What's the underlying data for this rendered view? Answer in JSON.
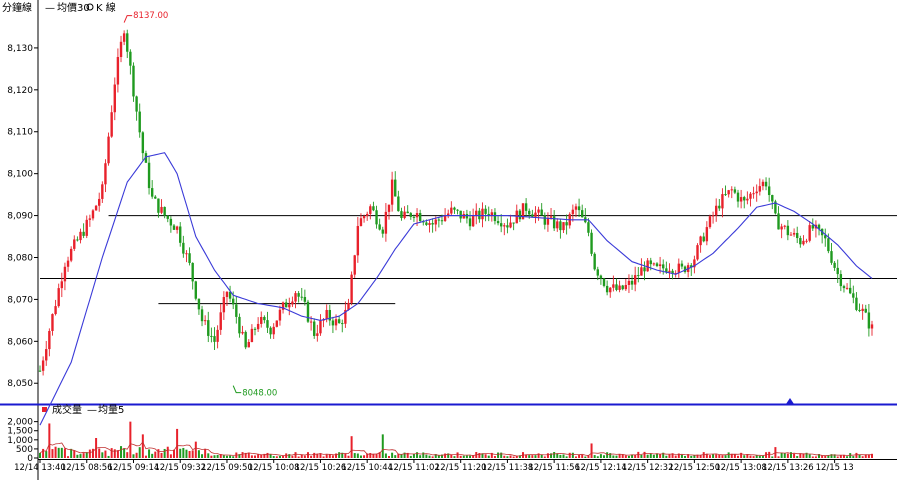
{
  "legend": {
    "period_label": "分鐘線",
    "dash": "—",
    "ma_label": "均價30",
    "kline_label": "K 線"
  },
  "volume_legend": {
    "label": "成交量",
    "dash": "—",
    "ma_label": "均量5"
  },
  "annotations": {
    "high": "8137.00",
    "low": "8048.00"
  },
  "colors": {
    "up": "#e8212b",
    "down": "#1f9a1f",
    "ma": "#3a3ad8",
    "divider": "#1a1ad0",
    "volume_ma": "#c03030"
  },
  "chart_data": [
    {
      "type": "candlestick",
      "title": "",
      "ylim": [
        8046,
        8140
      ],
      "y_ticks": [
        "8,130",
        "8,120",
        "8,110",
        "8,100",
        "8,090",
        "8,080",
        "8,070",
        "8,060",
        "8,050"
      ],
      "y_tick_values": [
        8130,
        8120,
        8110,
        8100,
        8090,
        8080,
        8070,
        8060,
        8050
      ],
      "high_marker": {
        "label": "8137.00",
        "value": 8137
      },
      "low_marker": {
        "label": "8048.00",
        "value": 8048
      },
      "horizontal_lines": [
        {
          "value": 8090,
          "from": "12/15 09:03",
          "to": "end"
        },
        {
          "value": 8075,
          "from": "start",
          "to": "end"
        },
        {
          "value": 8069,
          "from": "12/15 09:19",
          "to": "12/15 10:35"
        }
      ],
      "key_points": [
        {
          "t": 0,
          "v": 8053
        },
        {
          "t": 4,
          "v": 8066
        },
        {
          "t": 8,
          "v": 8079
        },
        {
          "t": 16,
          "v": 8089
        },
        {
          "t": 20,
          "v": 8096
        },
        {
          "t": 24,
          "v": 8122
        },
        {
          "t": 27,
          "v": 8135
        },
        {
          "t": 30,
          "v": 8120
        },
        {
          "t": 33,
          "v": 8105
        },
        {
          "t": 36,
          "v": 8094
        },
        {
          "t": 40,
          "v": 8090
        },
        {
          "t": 44,
          "v": 8087
        },
        {
          "t": 48,
          "v": 8078
        },
        {
          "t": 52,
          "v": 8065
        },
        {
          "t": 56,
          "v": 8060
        },
        {
          "t": 60,
          "v": 8072
        },
        {
          "t": 63,
          "v": 8066
        },
        {
          "t": 66,
          "v": 8058
        },
        {
          "t": 70,
          "v": 8065
        },
        {
          "t": 74,
          "v": 8063
        },
        {
          "t": 78,
          "v": 8068
        },
        {
          "t": 82,
          "v": 8072
        },
        {
          "t": 85,
          "v": 8068
        },
        {
          "t": 88,
          "v": 8062
        },
        {
          "t": 92,
          "v": 8066
        },
        {
          "t": 96,
          "v": 8064
        },
        {
          "t": 99,
          "v": 8068
        },
        {
          "t": 102,
          "v": 8088
        },
        {
          "t": 106,
          "v": 8092
        },
        {
          "t": 110,
          "v": 8087
        },
        {
          "t": 113,
          "v": 8097
        },
        {
          "t": 116,
          "v": 8089
        },
        {
          "t": 120,
          "v": 8091
        },
        {
          "t": 126,
          "v": 8088
        },
        {
          "t": 132,
          "v": 8091
        },
        {
          "t": 138,
          "v": 8089
        },
        {
          "t": 144,
          "v": 8091
        },
        {
          "t": 150,
          "v": 8088
        },
        {
          "t": 156,
          "v": 8092
        },
        {
          "t": 162,
          "v": 8089
        },
        {
          "t": 168,
          "v": 8087
        },
        {
          "t": 172,
          "v": 8092
        },
        {
          "t": 176,
          "v": 8086
        },
        {
          "t": 178,
          "v": 8078
        },
        {
          "t": 182,
          "v": 8073
        },
        {
          "t": 186,
          "v": 8072
        },
        {
          "t": 190,
          "v": 8074
        },
        {
          "t": 194,
          "v": 8078
        },
        {
          "t": 198,
          "v": 8077
        },
        {
          "t": 202,
          "v": 8078
        },
        {
          "t": 206,
          "v": 8077
        },
        {
          "t": 210,
          "v": 8080
        },
        {
          "t": 214,
          "v": 8087
        },
        {
          "t": 218,
          "v": 8093
        },
        {
          "t": 222,
          "v": 8096
        },
        {
          "t": 226,
          "v": 8093
        },
        {
          "t": 230,
          "v": 8097
        },
        {
          "t": 233,
          "v": 8098
        },
        {
          "t": 236,
          "v": 8089
        },
        {
          "t": 240,
          "v": 8086
        },
        {
          "t": 244,
          "v": 8084
        },
        {
          "t": 248,
          "v": 8087
        },
        {
          "t": 252,
          "v": 8084
        },
        {
          "t": 256,
          "v": 8076
        },
        {
          "t": 260,
          "v": 8071
        },
        {
          "t": 264,
          "v": 8067
        },
        {
          "t": 267,
          "v": 8063
        }
      ],
      "ma_key_points": [
        {
          "t": 0,
          "v": 8040
        },
        {
          "t": 10,
          "v": 8055
        },
        {
          "t": 20,
          "v": 8080
        },
        {
          "t": 28,
          "v": 8098
        },
        {
          "t": 34,
          "v": 8104
        },
        {
          "t": 40,
          "v": 8105
        },
        {
          "t": 44,
          "v": 8100
        },
        {
          "t": 50,
          "v": 8085
        },
        {
          "t": 56,
          "v": 8077
        },
        {
          "t": 62,
          "v": 8071
        },
        {
          "t": 70,
          "v": 8069
        },
        {
          "t": 78,
          "v": 8068
        },
        {
          "t": 84,
          "v": 8066
        },
        {
          "t": 90,
          "v": 8065
        },
        {
          "t": 96,
          "v": 8066
        },
        {
          "t": 102,
          "v": 8069
        },
        {
          "t": 108,
          "v": 8075
        },
        {
          "t": 114,
          "v": 8082
        },
        {
          "t": 120,
          "v": 8088
        },
        {
          "t": 130,
          "v": 8090
        },
        {
          "t": 150,
          "v": 8090
        },
        {
          "t": 170,
          "v": 8089
        },
        {
          "t": 176,
          "v": 8089
        },
        {
          "t": 182,
          "v": 8084
        },
        {
          "t": 190,
          "v": 8079
        },
        {
          "t": 198,
          "v": 8077
        },
        {
          "t": 204,
          "v": 8076
        },
        {
          "t": 210,
          "v": 8078
        },
        {
          "t": 216,
          "v": 8081
        },
        {
          "t": 224,
          "v": 8087
        },
        {
          "t": 230,
          "v": 8092
        },
        {
          "t": 236,
          "v": 8093
        },
        {
          "t": 242,
          "v": 8091
        },
        {
          "t": 248,
          "v": 8088
        },
        {
          "t": 256,
          "v": 8083
        },
        {
          "t": 262,
          "v": 8078
        },
        {
          "t": 267,
          "v": 8075
        }
      ],
      "x_tick_labels": [
        "12/14 13:40",
        "12/15 08:56",
        "12/15 09:14",
        "12/15 09:32",
        "12/15 09:50",
        "12/15 10:08",
        "12/15 10:26",
        "12/15 10:44",
        "12/15 11:02",
        "12/15 11:20",
        "12/15 11:38",
        "12/15 11:56",
        "12/15 12:14",
        "12/15 12:32",
        "12/15 12:50",
        "12/15 13:08",
        "12/15 13:26",
        "12/15 13"
      ],
      "x_tick_index": [
        0,
        15,
        30,
        45,
        60,
        75,
        90,
        105,
        120,
        135,
        150,
        165,
        180,
        195,
        210,
        225,
        240,
        255
      ],
      "bar_count": 268
    },
    {
      "type": "bar",
      "title": "",
      "series_label": "成交量",
      "ma_label": "均量5",
      "y_ticks": [
        "2,000",
        "1,500",
        "1,000",
        "500",
        "0"
      ],
      "y_tick_values": [
        2000,
        1500,
        1000,
        500,
        0
      ],
      "ylim": [
        0,
        2200
      ],
      "spikes": [
        {
          "t": 3,
          "v": 1900
        },
        {
          "t": 18,
          "v": 1100
        },
        {
          "t": 29,
          "v": 2000
        },
        {
          "t": 33,
          "v": 1300
        },
        {
          "t": 44,
          "v": 1600
        },
        {
          "t": 50,
          "v": 900
        },
        {
          "t": 100,
          "v": 1200
        },
        {
          "t": 110,
          "v": 1300
        },
        {
          "t": 177,
          "v": 800
        },
        {
          "t": 236,
          "v": 600
        }
      ]
    }
  ]
}
